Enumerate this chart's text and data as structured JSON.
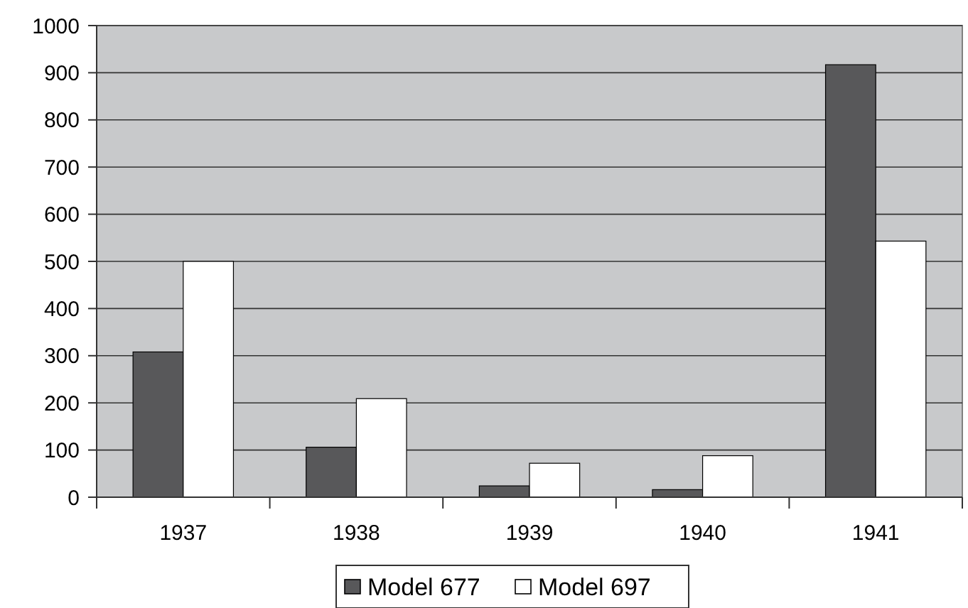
{
  "chart_data": {
    "type": "bar",
    "categories": [
      "1937",
      "1938",
      "1939",
      "1940",
      "1941"
    ],
    "series": [
      {
        "name": "Model 677",
        "color": "#58585a",
        "values": [
          308,
          106,
          24,
          16,
          917
        ]
      },
      {
        "name": "Model 697",
        "color": "#ffffff",
        "values": [
          500,
          209,
          72,
          88,
          543
        ]
      }
    ],
    "ylim": [
      0,
      1000
    ],
    "yticks": [
      0,
      100,
      200,
      300,
      400,
      500,
      600,
      700,
      800,
      900,
      1000
    ],
    "grid": "y",
    "legend": "bottom"
  }
}
